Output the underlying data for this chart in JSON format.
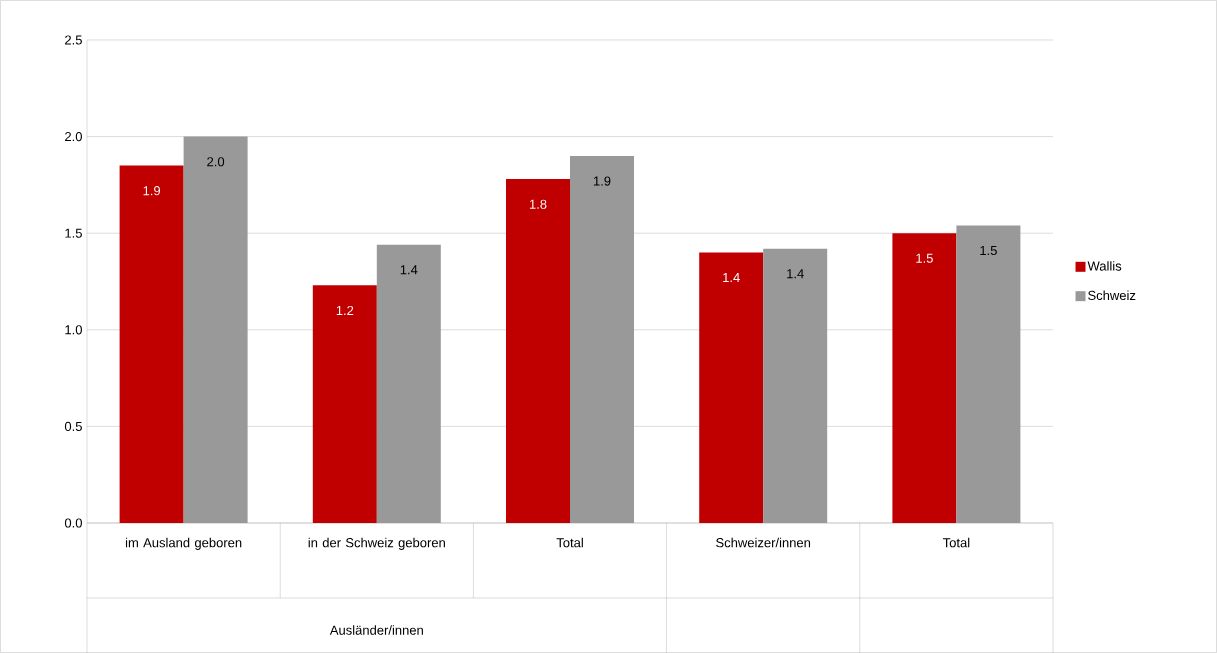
{
  "chart_data": {
    "type": "bar",
    "categories": [
      "im Ausland geboren",
      "in der Schweiz geboren",
      "Total",
      "Schweizer/innen",
      "Total"
    ],
    "series": [
      {
        "name": "Wallis",
        "color": "#c00000",
        "values": [
          1.85,
          1.23,
          1.78,
          1.4,
          1.5
        ],
        "value_labels": [
          "1.9",
          "1.2",
          "1.8",
          "1.4",
          "1.5"
        ]
      },
      {
        "name": "Schweiz",
        "color": "#999999",
        "values": [
          2.0,
          1.44,
          1.9,
          1.42,
          1.54
        ],
        "value_labels": [
          "2.0",
          "1.4",
          "1.9",
          "1.4",
          "1.5"
        ]
      }
    ],
    "ylim": [
      0,
      2.5
    ],
    "yticks": [
      {
        "value": 0,
        "label": "0.0"
      },
      {
        "value": 0.5,
        "label": "0.5"
      },
      {
        "value": 1,
        "label": "1.0"
      },
      {
        "value": 1.5,
        "label": "1.5"
      },
      {
        "value": 2,
        "label": "2.0"
      },
      {
        "value": 2.5,
        "label": "2.5"
      }
    ],
    "grid": "y",
    "legend": "right",
    "annotations": [
      "Ausländer/innen"
    ]
  }
}
